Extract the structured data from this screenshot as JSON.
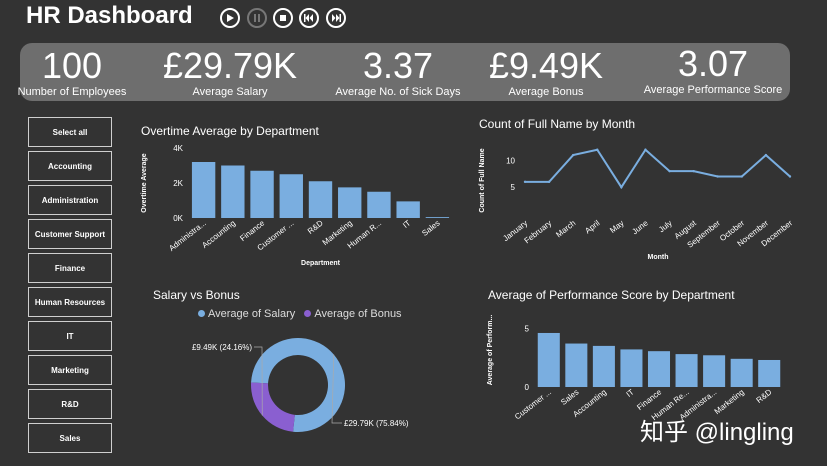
{
  "header": {
    "title": "HR Dashboard"
  },
  "kpis": [
    {
      "value": "100",
      "label": "Number of Employees"
    },
    {
      "value": "£29.79K",
      "label": "Average Salary"
    },
    {
      "value": "3.37",
      "label": "Average No. of Sick Days"
    },
    {
      "value": "£9.49K",
      "label": "Average Bonus"
    },
    {
      "value": "3.07",
      "label": "Average Performance Score"
    }
  ],
  "slicers": [
    "Select all",
    "Accounting",
    "Administration",
    "Customer Support",
    "Finance",
    "Human Resources",
    "IT",
    "Marketing",
    "R&D",
    "Sales"
  ],
  "watermark": "知乎 @lingling",
  "chart_data": [
    {
      "type": "bar",
      "title": "Overtime Average by Department",
      "categories": [
        "Administra...",
        "Accounting",
        "Finance",
        "Customer ...",
        "R&D",
        "Marketing",
        "Human R...",
        "IT",
        "Sales"
      ],
      "values": [
        3200,
        3000,
        2700,
        2500,
        2100,
        1750,
        1500,
        950,
        50
      ],
      "xlabel": "Department",
      "ylabel": "Overtime Average",
      "yticks": [
        "0K",
        "2K",
        "4K"
      ],
      "ylim": [
        0,
        4000
      ],
      "color": "#7aaee0"
    },
    {
      "type": "line",
      "title": "Count of Full Name by Month",
      "categories": [
        "January",
        "February",
        "March",
        "April",
        "May",
        "June",
        "July",
        "August",
        "September",
        "October",
        "November",
        "December"
      ],
      "values": [
        6,
        6,
        11,
        12,
        5,
        12,
        8,
        8,
        7,
        7,
        11,
        7
      ],
      "xlabel": "Month",
      "ylabel": "Count of Full Name",
      "yticks": [
        "5",
        "10"
      ],
      "ylim": [
        0,
        14
      ],
      "color": "#7aaee0"
    },
    {
      "type": "pie",
      "title": "Salary vs Bonus",
      "legend": [
        "Average of Salary",
        "Average of Bonus"
      ],
      "values": [
        29.79,
        9.49
      ],
      "data_labels": [
        "£29.79K (75.84%)",
        "£9.49K (24.16%)"
      ],
      "colors": [
        "#7aaee0",
        "#8a5fd0"
      ]
    },
    {
      "type": "bar",
      "title": "Average of Performance Score by Department",
      "categories": [
        "Customer ...",
        "Sales",
        "Accounting",
        "IT",
        "Finance",
        "Human Re...",
        "Administra...",
        "Marketing",
        "R&D"
      ],
      "values": [
        4.6,
        3.7,
        3.5,
        3.2,
        3.05,
        2.8,
        2.7,
        2.4,
        2.3
      ],
      "xlabel": "",
      "ylabel": "Average of Perform...",
      "yticks": [
        "0",
        "5"
      ],
      "ylim": [
        0,
        6.3
      ],
      "color": "#7aaee0"
    }
  ]
}
